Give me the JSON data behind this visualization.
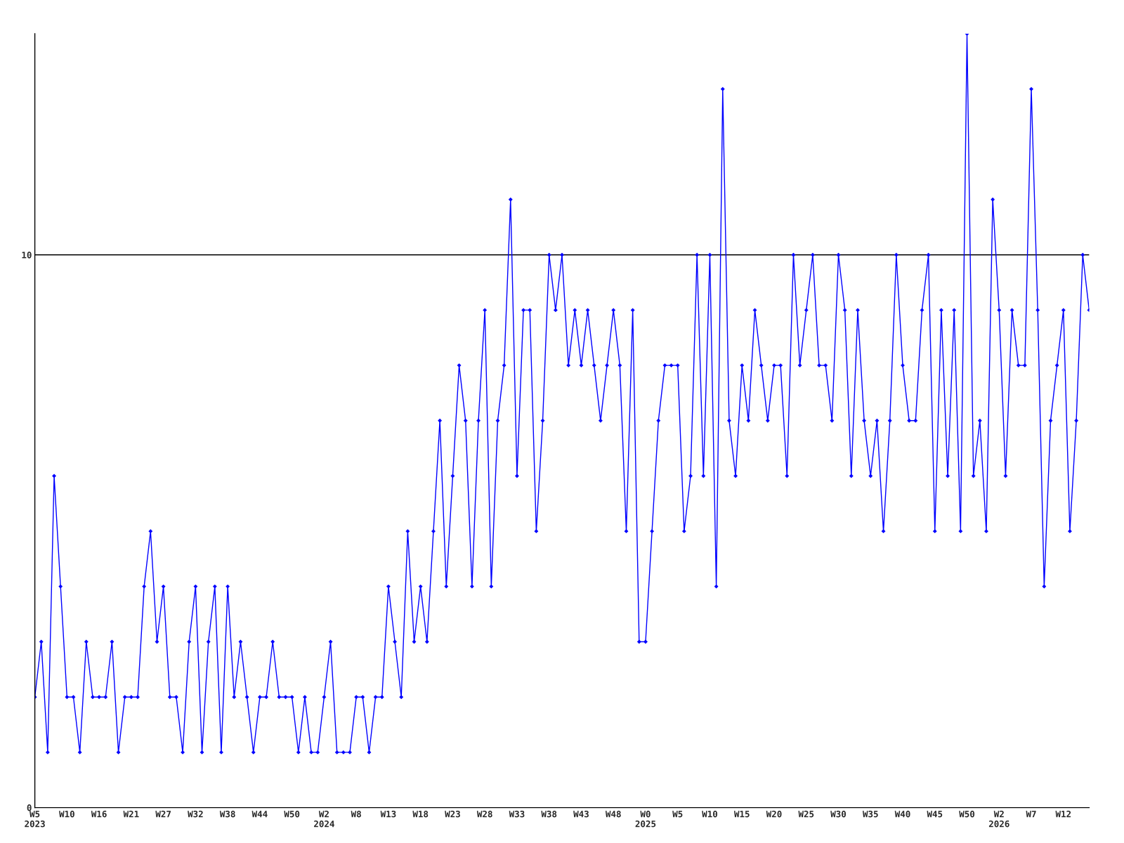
{
  "chart_data": {
    "type": "line",
    "categories": [
      "W5\n2023",
      null,
      null,
      null,
      null,
      "W10",
      null,
      null,
      null,
      null,
      "W16",
      null,
      null,
      null,
      null,
      "W21",
      null,
      null,
      null,
      null,
      "W27",
      null,
      null,
      null,
      null,
      "W32",
      null,
      null,
      null,
      null,
      "W38",
      null,
      null,
      null,
      null,
      "W44",
      null,
      null,
      null,
      null,
      "W50",
      null,
      null,
      null,
      null,
      "W2\n2024",
      null,
      null,
      null,
      null,
      "W8",
      null,
      null,
      null,
      null,
      "W13",
      null,
      null,
      null,
      null,
      "W18",
      null,
      null,
      null,
      null,
      "W23",
      null,
      null,
      null,
      null,
      "W28",
      null,
      null,
      null,
      null,
      "W33",
      null,
      null,
      null,
      null,
      "W38",
      null,
      null,
      null,
      null,
      "W43",
      null,
      null,
      null,
      null,
      "W48",
      null,
      null,
      null,
      null,
      "W0\n2025",
      null,
      null,
      null,
      null,
      "W5",
      null,
      null,
      null,
      null,
      "W10",
      null,
      null,
      null,
      null,
      "W15",
      null,
      null,
      null,
      null,
      "W20",
      null,
      null,
      null,
      null,
      "W25",
      null,
      null,
      null,
      null,
      "W30",
      null,
      null,
      null,
      null,
      "W35",
      null,
      null,
      null,
      null,
      "W40",
      null,
      null,
      null,
      null,
      "W45",
      null,
      null,
      null,
      null,
      "W50",
      null,
      null,
      null,
      null,
      "W2\n2026",
      null,
      null,
      null,
      null,
      "W7",
      null,
      null,
      null,
      null,
      "W12",
      null,
      null,
      null,
      null
    ],
    "series": [
      {
        "color": "#0000ff",
        "values": [
          2,
          3,
          1,
          6,
          4,
          2,
          2,
          1,
          3,
          2,
          2,
          2,
          3,
          1,
          2,
          2,
          2,
          4,
          5,
          3,
          4,
          2,
          2,
          1,
          3,
          4,
          1,
          3,
          4,
          1,
          4,
          2,
          3,
          2,
          1,
          2,
          2,
          3,
          2,
          2,
          2,
          1,
          2,
          1,
          1,
          2,
          3,
          1,
          1,
          1,
          2,
          2,
          1,
          2,
          2,
          4,
          3,
          2,
          5,
          3,
          4,
          3,
          5,
          7,
          4,
          6,
          8,
          7,
          4,
          7,
          9,
          4,
          7,
          8,
          11,
          6,
          9,
          9,
          5,
          7,
          10,
          9,
          10,
          8,
          9,
          8,
          9,
          8,
          7,
          8,
          9,
          8,
          5,
          9,
          3,
          3,
          5,
          7,
          8,
          8,
          8,
          5,
          6,
          10,
          6,
          10,
          4,
          13,
          7,
          6,
          8,
          7,
          9,
          8,
          7,
          8,
          8,
          6,
          10,
          8,
          9,
          10,
          8,
          8,
          7,
          10,
          9,
          6,
          9,
          7,
          6,
          7,
          5,
          7,
          10,
          8,
          7,
          7,
          9,
          10,
          5,
          9,
          6,
          9,
          5,
          14,
          6,
          7,
          5,
          11,
          9,
          6,
          9,
          8,
          8,
          13,
          9,
          4,
          7,
          8,
          9,
          5,
          7,
          10,
          9
        ]
      }
    ],
    "ylim": [
      0,
      14
    ],
    "yticks": [
      0,
      10
    ],
    "grid": "y",
    "marker": "diamond",
    "line_style": "solid",
    "legend": false
  }
}
